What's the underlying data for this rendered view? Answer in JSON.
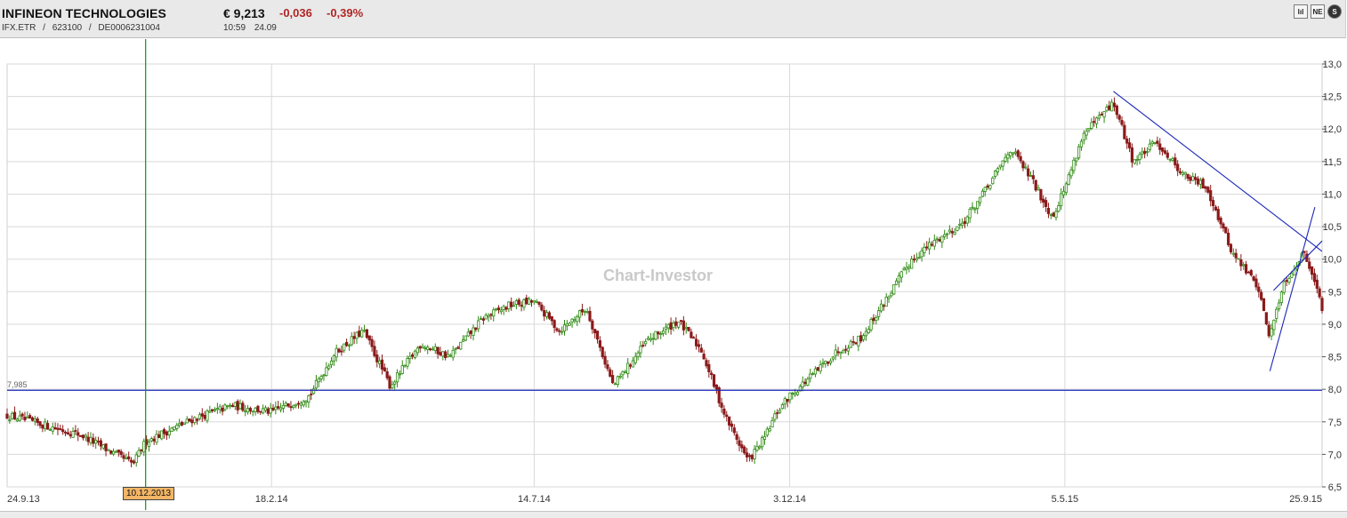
{
  "header": {
    "name": "INFINEON TECHNOLOGIES",
    "ticker": "IFX.ETR",
    "sep1": "/",
    "wkn": "623100",
    "sep2": "/",
    "isin": "DE0006231004",
    "price": "€ 9,213",
    "change": "-0,036",
    "change_pct": "-0,39%",
    "time": "10:59",
    "date": "24.09",
    "icons": [
      "chart-type-icon",
      "news-icon",
      "info-icon"
    ],
    "icon_labels": [
      "lıl",
      "NE",
      "S"
    ]
  },
  "watermark": "Chart-Investor",
  "reference_line": {
    "value": 7.985,
    "label": "7,985"
  },
  "cursor": {
    "date_label": "10.12.2013"
  },
  "colors": {
    "up": "#2e8a12",
    "down": "#8b1a1a",
    "trendline": "#1c27b8",
    "cursor": "#0a9a0a",
    "grid": "#d9d9d9"
  },
  "chart_data": {
    "type": "candlestick",
    "x_start": "24.9.13",
    "x_end": "25.9.15",
    "x_tick_labels": [
      "24.9.13",
      "18.2.14",
      "14.7.14",
      "3.12.14",
      "5.5.15",
      "25.9.15"
    ],
    "y_ticks": [
      "6,5",
      "7,0",
      "7,5",
      "8,0",
      "8,5",
      "9,0",
      "9,5",
      "10,0",
      "10,5",
      "11,0",
      "11,5",
      "12,0",
      "12,5",
      "13,0"
    ],
    "ylim": [
      6.5,
      13.0
    ],
    "close_path": [
      [
        "24.9.13",
        7.6
      ],
      [
        "4.11.13",
        7.3
      ],
      [
        "3.12.13",
        6.85
      ],
      [
        "10.12.13",
        7.2
      ],
      [
        "6.1.14",
        7.55
      ],
      [
        "27.1.14",
        7.75
      ],
      [
        "18.2.14",
        7.65
      ],
      [
        "11.3.14",
        7.9
      ],
      [
        "25.3.14",
        8.55
      ],
      [
        "10.4.14",
        8.9
      ],
      [
        "25.4.14",
        8.05
      ],
      [
        "12.5.14",
        8.7
      ],
      [
        "28.5.14",
        8.5
      ],
      [
        "16.6.14",
        9.1
      ],
      [
        "1.7.14",
        9.3
      ],
      [
        "14.7.14",
        9.35
      ],
      [
        "28.7.14",
        8.9
      ],
      [
        "12.8.14",
        9.25
      ],
      [
        "27.8.14",
        8.05
      ],
      [
        "15.9.14",
        8.75
      ],
      [
        "2.10.14",
        9.05
      ],
      [
        "15.10.14",
        8.6
      ],
      [
        "28.10.14",
        7.6
      ],
      [
        "10.11.14",
        6.9
      ],
      [
        "19.11.14",
        7.25
      ],
      [
        "26.11.14",
        7.65
      ],
      [
        "3.12.14",
        7.9
      ],
      [
        "15.12.14",
        8.2
      ],
      [
        "30.12.14",
        8.6
      ],
      [
        "12.1.15",
        8.8
      ],
      [
        "26.1.15",
        9.4
      ],
      [
        "9.2.15",
        10.0
      ],
      [
        "23.2.15",
        10.3
      ],
      [
        "9.3.15",
        10.55
      ],
      [
        "23.3.15",
        11.1
      ],
      [
        "5.4.15",
        11.7
      ],
      [
        "16.4.15",
        11.25
      ],
      [
        "28.4.15",
        10.65
      ],
      [
        "5.5.15",
        11.1
      ],
      [
        "15.5.15",
        11.9
      ],
      [
        "1.6.15",
        12.4
      ],
      [
        "12.6.15",
        11.5
      ],
      [
        "25.6.15",
        11.8
      ],
      [
        "10.7.15",
        11.3
      ],
      [
        "23.7.15",
        11.1
      ],
      [
        "6.8.15",
        10.1
      ],
      [
        "20.8.15",
        9.6
      ],
      [
        "27.8.15",
        8.8
      ],
      [
        "3.9.15",
        9.6
      ],
      [
        "15.9.15",
        10.1
      ],
      [
        "21.9.15",
        9.7
      ],
      [
        "25.9.15",
        9.2
      ]
    ],
    "trendlines": [
      {
        "from": [
          "1.6.15",
          12.58
        ],
        "to": [
          "25.9.15",
          10.12
        ]
      },
      {
        "from": [
          "27.8.15",
          8.28
        ],
        "to": [
          "21.9.15",
          10.8
        ]
      },
      {
        "from": [
          "29.8.15",
          9.52
        ],
        "to": [
          "25.9.15",
          10.28
        ]
      }
    ],
    "cursor_date": "10.12.13",
    "horizontal_line": 7.985,
    "grid": true
  }
}
